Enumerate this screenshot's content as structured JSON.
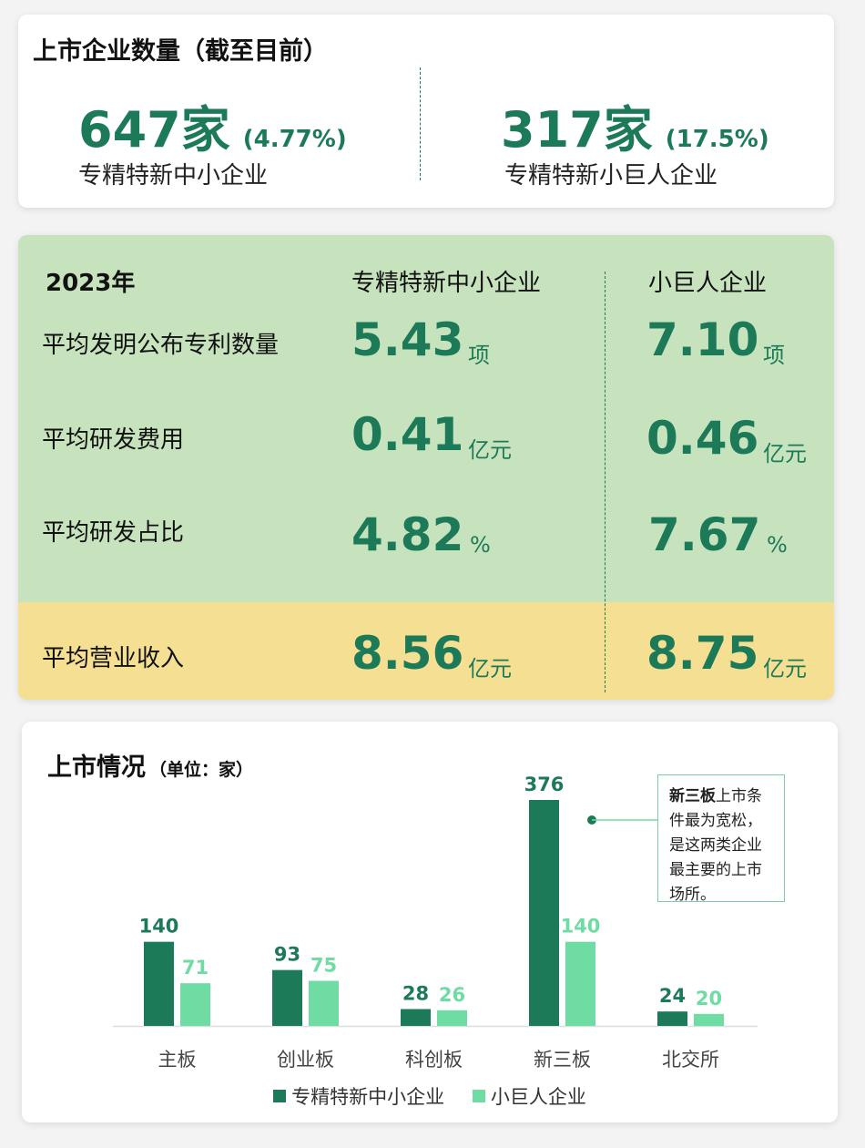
{
  "listed": {
    "title": "上市企业数量（截至目前）",
    "sme": {
      "count": "647家",
      "pct": "(4.77%)",
      "label": "专精特新中小企业"
    },
    "giant": {
      "count": "317家",
      "pct": "(17.5%)",
      "label": "专精特新小巨人企业"
    }
  },
  "metrics": {
    "year": "2023年",
    "col_sme": "专精特新中小企业",
    "col_giant": "小巨人企业",
    "rows": [
      {
        "label": "平均发明公布专利数量",
        "sme": "5.43",
        "giant": "7.10",
        "unit": "项"
      },
      {
        "label": "平均研发费用",
        "sme": "0.41",
        "giant": "0.46",
        "unit": "亿元"
      },
      {
        "label": "平均研发占比",
        "sme": "4.82",
        "giant": "7.67",
        "unit": "%"
      },
      {
        "label": "平均营业收入",
        "sme": "8.56",
        "giant": "8.75",
        "unit": "亿元"
      }
    ]
  },
  "chart": {
    "title": "上市情况",
    "subtitle": "（单位：家）",
    "note_bold": "新三板",
    "note_text": "上市条件最为宽松，是这两类企业最主要的上市场所。",
    "colors": {
      "sme": "#1d7a58",
      "giant": "#6fdca4",
      "axis": "#dddddd"
    }
  },
  "chart_data": {
    "type": "bar",
    "categories": [
      "主板",
      "创业板",
      "科创板",
      "新三板",
      "北交所"
    ],
    "series": [
      {
        "name": "专精特新中小企业",
        "values": [
          140,
          93,
          28,
          376,
          24
        ]
      },
      {
        "name": "小巨人企业",
        "values": [
          71,
          75,
          26,
          140,
          20
        ]
      }
    ],
    "ylim": [
      0,
      376
    ],
    "legend": "bottom",
    "grid": false
  }
}
